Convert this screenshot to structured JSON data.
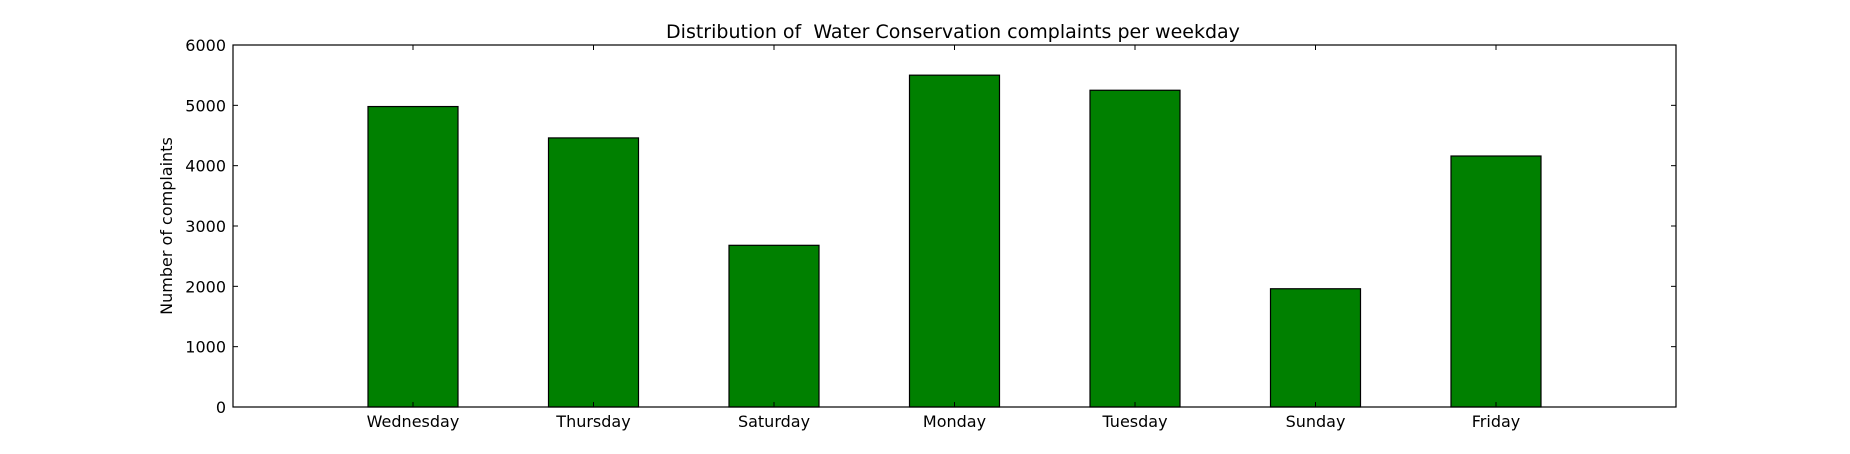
{
  "chart_data": {
    "type": "bar",
    "title": "Distribution of  Water Conservation complaints per weekday",
    "xlabel": "",
    "ylabel": "Number of complaints",
    "categories": [
      "Wednesday",
      "Thursday",
      "Saturday",
      "Monday",
      "Tuesday",
      "Sunday",
      "Friday"
    ],
    "values": [
      4980,
      4460,
      2680,
      5500,
      5250,
      1960,
      4160
    ],
    "ylim": [
      0,
      6000
    ],
    "yticks": [
      0,
      1000,
      2000,
      3000,
      4000,
      5000,
      6000
    ],
    "grid": false,
    "legend": "none",
    "bar_color": "#008000",
    "edge_color": "#000000"
  }
}
